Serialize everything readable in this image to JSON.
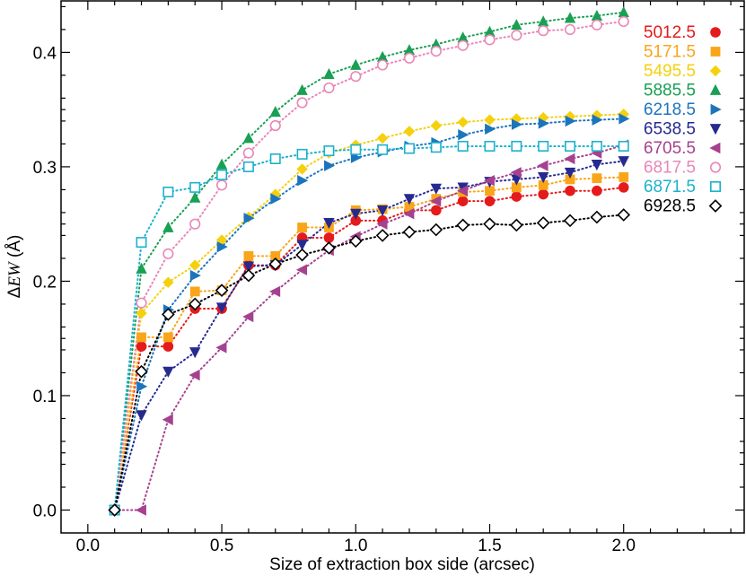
{
  "chart_data": {
    "type": "line",
    "title": "",
    "xlabel": "Size of extraction box side (arcsec)",
    "ylabel_prefix": "Δ",
    "ylabel_ew": "EW",
    "ylabel_unit": " (Å)",
    "xlim": [
      -0.1,
      2.45
    ],
    "ylim": [
      -0.02,
      0.445
    ],
    "xticks": [
      0.0,
      0.5,
      1.0,
      1.5,
      2.0
    ],
    "xtick_labels": [
      "0.0",
      "0.5",
      "1.0",
      "1.5",
      "2.0"
    ],
    "yticks": [
      0.0,
      0.1,
      0.2,
      0.3,
      0.4
    ],
    "ytick_labels": [
      "0.0",
      "0.1",
      "0.2",
      "0.3",
      "0.4"
    ],
    "legend_position": "top-right",
    "x": [
      0.1,
      0.2,
      0.3,
      0.4,
      0.5,
      0.6,
      0.7,
      0.8,
      0.9,
      1.0,
      1.1,
      1.2,
      1.3,
      1.4,
      1.5,
      1.6,
      1.7,
      1.8,
      1.9,
      2.0
    ],
    "series": [
      {
        "name": "5012.5",
        "color": "#e41a1c",
        "marker": "circle-filled",
        "values": [
          0.0,
          0.143,
          0.143,
          0.176,
          0.176,
          0.214,
          0.214,
          0.238,
          0.238,
          0.253,
          0.253,
          0.262,
          0.262,
          0.27,
          0.27,
          0.274,
          0.276,
          0.279,
          0.279,
          0.282
        ]
      },
      {
        "name": "5171.5",
        "color": "#f9a51a",
        "marker": "square-filled",
        "values": [
          0.0,
          0.151,
          0.151,
          0.191,
          0.192,
          0.222,
          0.222,
          0.247,
          0.247,
          0.262,
          0.263,
          0.265,
          0.272,
          0.278,
          0.279,
          0.282,
          0.284,
          0.289,
          0.29,
          0.291
        ]
      },
      {
        "name": "5495.5",
        "color": "#f5d00c",
        "marker": "diamond-filled",
        "values": [
          0.0,
          0.172,
          0.199,
          0.214,
          0.236,
          0.256,
          0.276,
          0.298,
          0.312,
          0.319,
          0.325,
          0.331,
          0.336,
          0.339,
          0.341,
          0.342,
          0.343,
          0.344,
          0.345,
          0.346
        ]
      },
      {
        "name": "5885.5",
        "color": "#19a053",
        "marker": "triangle-up",
        "values": [
          0.0,
          0.211,
          0.247,
          0.273,
          0.302,
          0.325,
          0.348,
          0.367,
          0.381,
          0.389,
          0.396,
          0.402,
          0.407,
          0.413,
          0.418,
          0.424,
          0.427,
          0.43,
          0.432,
          0.435
        ]
      },
      {
        "name": "6218.5",
        "color": "#1c75bc",
        "marker": "triangle-right",
        "values": [
          0.0,
          0.108,
          0.175,
          0.205,
          0.23,
          0.255,
          0.272,
          0.288,
          0.301,
          0.308,
          0.313,
          0.318,
          0.321,
          0.328,
          0.333,
          0.337,
          0.338,
          0.34,
          0.341,
          0.342
        ]
      },
      {
        "name": "6538.5",
        "color": "#262a8e",
        "marker": "triangle-down",
        "values": [
          0.0,
          0.083,
          0.121,
          0.138,
          0.177,
          0.213,
          0.214,
          0.232,
          0.251,
          0.259,
          0.262,
          0.272,
          0.281,
          0.282,
          0.287,
          0.289,
          0.291,
          0.295,
          0.302,
          0.305
        ]
      },
      {
        "name": "6705.5",
        "color": "#a6418f",
        "marker": "triangle-left",
        "values": [
          0.0,
          0.0,
          0.079,
          0.118,
          0.142,
          0.169,
          0.191,
          0.21,
          0.227,
          0.239,
          0.25,
          0.259,
          0.27,
          0.279,
          0.288,
          0.295,
          0.301,
          0.307,
          0.312,
          0.319
        ]
      },
      {
        "name": "6817.5",
        "color": "#e887b8",
        "marker": "circle-open",
        "values": [
          0.0,
          0.181,
          0.224,
          0.25,
          0.284,
          0.312,
          0.336,
          0.356,
          0.369,
          0.379,
          0.389,
          0.395,
          0.401,
          0.406,
          0.411,
          0.415,
          0.419,
          0.42,
          0.424,
          0.427
        ]
      },
      {
        "name": "6871.5",
        "color": "#1cb1cc",
        "marker": "square-open",
        "values": [
          0.0,
          0.234,
          0.278,
          0.282,
          0.293,
          0.3,
          0.307,
          0.311,
          0.314,
          0.315,
          0.315,
          0.316,
          0.317,
          0.318,
          0.318,
          0.318,
          0.318,
          0.318,
          0.318,
          0.318
        ]
      },
      {
        "name": "6928.5",
        "color": "#000000",
        "marker": "diamond-open",
        "values": [
          0.0,
          0.121,
          0.171,
          0.18,
          0.192,
          0.205,
          0.215,
          0.223,
          0.229,
          0.235,
          0.24,
          0.243,
          0.245,
          0.249,
          0.25,
          0.249,
          0.251,
          0.253,
          0.256,
          0.258
        ]
      }
    ]
  }
}
